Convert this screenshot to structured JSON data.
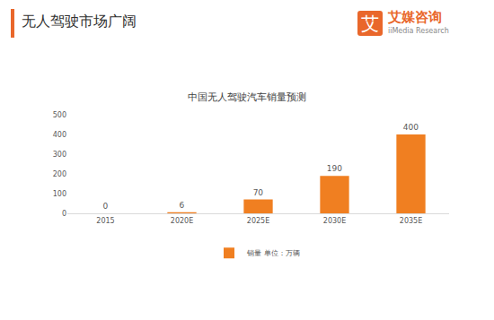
{
  "header": {
    "title": "无人驾驶市场广阔",
    "logo_mark": "艾",
    "logo_name": "艾媒咨询",
    "logo_sub": "iiMedia Research"
  },
  "chart_data": {
    "type": "bar",
    "title": "中国无人驾驶汽车销量预测",
    "categories": [
      "2015",
      "2020E",
      "2025E",
      "2030E",
      "2035E"
    ],
    "series": [
      {
        "name": "销量 单位：万辆",
        "color": "#f07f21",
        "values": [
          0,
          6,
          70,
          190,
          400
        ]
      }
    ],
    "ylim": [
      0,
      500
    ],
    "yticks": [
      0,
      100,
      200,
      300,
      400,
      500
    ],
    "grid": false,
    "data_labels": true,
    "legend": "bottom"
  }
}
